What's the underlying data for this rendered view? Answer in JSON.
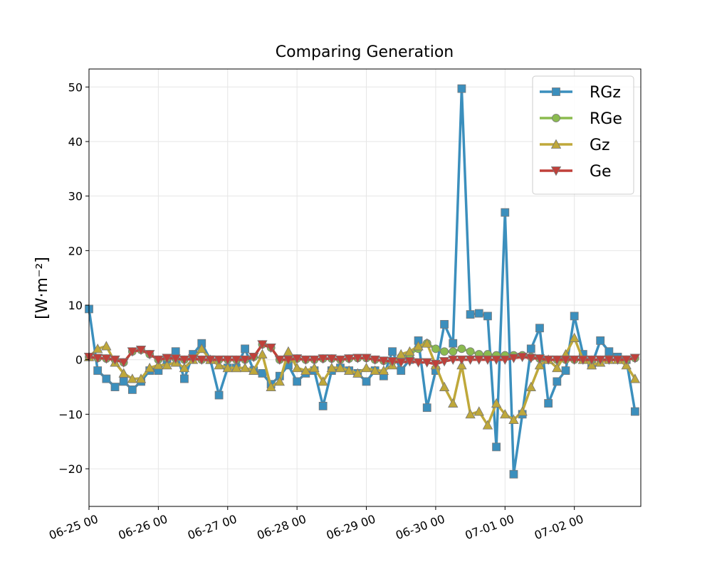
{
  "chart_data": {
    "type": "line",
    "title": "Comparing Generation",
    "ylabel": "[W·m⁻²]",
    "x": [
      "06-25 00",
      "06-25 03",
      "06-25 06",
      "06-25 09",
      "06-25 12",
      "06-25 15",
      "06-25 18",
      "06-25 21",
      "06-26 00",
      "06-26 03",
      "06-26 06",
      "06-26 09",
      "06-26 12",
      "06-26 15",
      "06-26 18",
      "06-26 21",
      "06-27 00",
      "06-27 03",
      "06-27 06",
      "06-27 09",
      "06-27 12",
      "06-27 15",
      "06-27 18",
      "06-27 21",
      "06-28 00",
      "06-28 03",
      "06-28 06",
      "06-28 09",
      "06-28 12",
      "06-28 15",
      "06-28 18",
      "06-28 21",
      "06-29 00",
      "06-29 03",
      "06-29 06",
      "06-29 09",
      "06-29 12",
      "06-29 15",
      "06-29 18",
      "06-29 21",
      "06-30 00",
      "06-30 03",
      "06-30 06",
      "06-30 09",
      "06-30 12",
      "06-30 15",
      "06-30 18",
      "06-30 21",
      "07-01 00",
      "07-01 03",
      "07-01 06",
      "07-01 09",
      "07-01 12",
      "07-01 15",
      "07-01 18",
      "07-01 21",
      "07-02 00",
      "07-02 03",
      "07-02 06",
      "07-02 09",
      "07-02 12",
      "07-02 15",
      "07-02 18",
      "07-02 21"
    ],
    "series": [
      {
        "name": "RGz",
        "color": "#3b8fbd",
        "marker": "square",
        "values": [
          9.3,
          -2,
          -3.5,
          -5,
          -4,
          -5.5,
          -4,
          -2,
          -2,
          0,
          1.5,
          -3.5,
          1,
          3,
          0,
          -6.5,
          -1.5,
          -1.5,
          2,
          -2,
          -2.5,
          -4.5,
          -3,
          -1,
          -4,
          -2.5,
          -2,
          -8.5,
          -2,
          -1.5,
          -2,
          -2.5,
          -4,
          -2,
          -3,
          1.5,
          -2,
          0,
          3.5,
          -8.8,
          -2,
          6.5,
          3,
          49.7,
          8.3,
          8.5,
          8,
          -16,
          27,
          -21,
          -10,
          2,
          5.8,
          -8,
          -4,
          -2,
          8,
          1,
          -1,
          3.5,
          1.5,
          0.5,
          0,
          -9.5
        ]
      },
      {
        "name": "RGe",
        "color": "#8bbb4f",
        "marker": "circle",
        "values": [
          0.5,
          0.3,
          0.2,
          0,
          -0.5,
          1.5,
          1.8,
          1,
          0,
          0.3,
          0.2,
          0,
          0.2,
          0,
          0,
          0,
          0,
          0,
          0,
          0.5,
          2.8,
          2.2,
          0,
          0,
          0.2,
          0,
          0,
          0.2,
          0.2,
          0,
          0.2,
          0.3,
          0.3,
          0,
          -0.2,
          -0.3,
          0.5,
          1,
          2,
          3,
          2,
          1.5,
          1.5,
          2,
          1.5,
          1,
          1,
          0.8,
          0.8,
          0.8,
          0.8,
          0.5,
          0.2,
          0,
          0,
          0,
          0,
          0,
          0,
          0,
          0,
          0,
          0,
          0.3
        ]
      },
      {
        "name": "Gz",
        "color": "#bfa83a",
        "marker": "triangle-up",
        "values": [
          0.5,
          2,
          2.5,
          -0.5,
          -2.5,
          -3.5,
          -3.5,
          -1.5,
          -1,
          -1,
          -0.5,
          -1.5,
          0,
          2,
          0,
          -1,
          -1.5,
          -1.5,
          -1.5,
          -2,
          1,
          -5,
          -4,
          1.5,
          -1.5,
          -2,
          -1.5,
          -4,
          -1.5,
          -1.5,
          -2,
          -2.5,
          -1.5,
          -2,
          -2,
          -1,
          1,
          1.5,
          2.5,
          3,
          -1,
          -5,
          -8,
          -1,
          -10,
          -9.5,
          -12,
          -8,
          -10,
          -11,
          -9.5,
          -5,
          -1,
          0,
          -1.5,
          1,
          4,
          0,
          -1,
          -0.5,
          0,
          0,
          -1,
          -3.5
        ]
      },
      {
        "name": "Ge",
        "color": "#c0403a",
        "marker": "triangle-down",
        "values": [
          0.5,
          0.3,
          0.2,
          0,
          -0.5,
          1.5,
          1.8,
          1,
          0,
          0.3,
          0.2,
          0,
          0.2,
          0,
          0,
          0,
          0,
          0,
          0,
          0.5,
          2.8,
          2.2,
          0,
          0,
          0.2,
          0,
          0,
          0.2,
          0.2,
          0,
          0.2,
          0.3,
          0.3,
          0,
          -0.2,
          -0.3,
          -0.5,
          -0.3,
          -0.5,
          -0.5,
          -0.8,
          -0.3,
          0,
          0,
          0,
          0,
          0,
          0,
          0,
          0.3,
          0.5,
          0.3,
          0.2,
          0,
          0,
          0,
          0,
          0,
          0,
          0,
          0,
          0,
          0,
          0.3
        ]
      }
    ],
    "xlim": [
      "06-25 00",
      "07-02 23"
    ],
    "xticks": [
      "06-25 00",
      "06-26 00",
      "06-27 00",
      "06-28 00",
      "06-29 00",
      "06-30 00",
      "07-01 00",
      "07-02 00"
    ],
    "ylim": [
      -26.9,
      53.3
    ],
    "yticks": [
      {
        "value": -20,
        "label": "−20"
      },
      {
        "value": -10,
        "label": "−10"
      },
      0,
      10,
      20,
      30,
      40,
      50
    ],
    "grid": true,
    "legend": "upper right"
  }
}
